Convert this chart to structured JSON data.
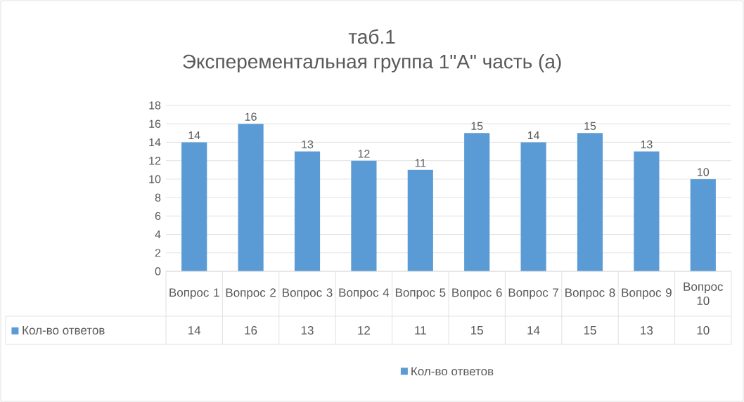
{
  "chart_data": {
    "type": "bar",
    "title": "таб.1",
    "subtitle": "Эксперементальная группа 1\"А\" часть (а)",
    "categories": [
      "Вопрос 1",
      "Вопрос 2",
      "Вопрос 3",
      "Вопрос 4",
      "Вопрос 5",
      "Вопрос 6",
      "Вопрос 7",
      "Вопрос 8",
      "Вопрос 9",
      "Вопрос 10"
    ],
    "series": [
      {
        "name": "Кол-во ответов",
        "color": "#5b9bd5",
        "values": [
          14,
          16,
          13,
          12,
          11,
          15,
          14,
          15,
          13,
          10
        ],
        "value_labels": [
          "14",
          "16",
          "13",
          "12",
          "11",
          "15",
          "14",
          "15",
          "13",
          "10"
        ]
      }
    ],
    "ylim": [
      0,
      18
    ],
    "yticks": [
      0,
      2,
      4,
      6,
      8,
      10,
      12,
      14,
      16,
      18
    ],
    "grid": "y",
    "data_labels": true,
    "legend": "bottom"
  }
}
